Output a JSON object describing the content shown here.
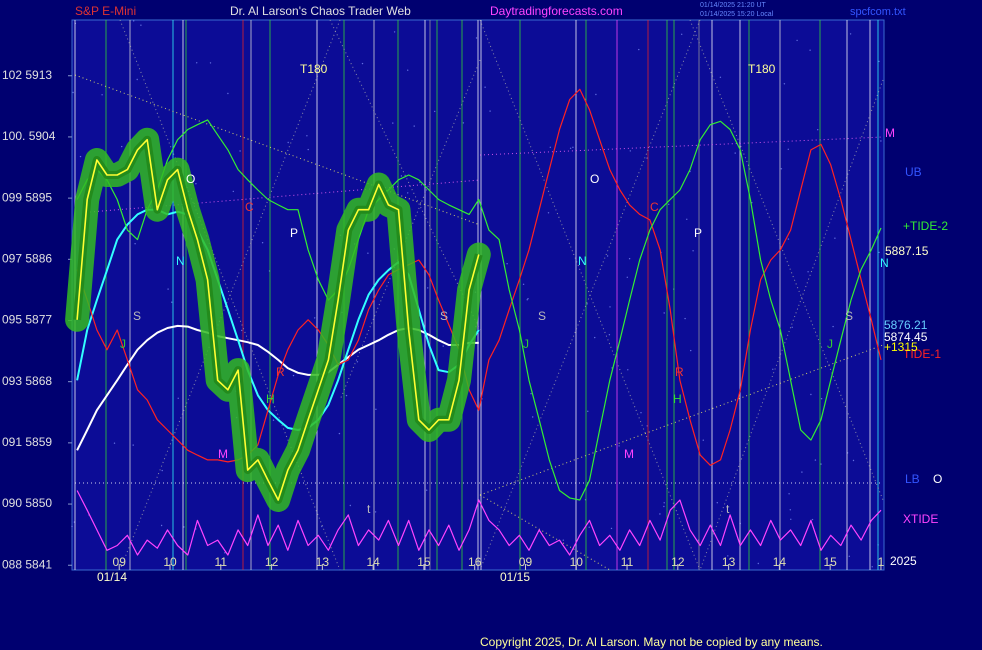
{
  "chart_data": {
    "type": "line",
    "instrument": "S&P E-Mini",
    "title": "Dr. Al Larson's Chaos Trader Web",
    "website": "Daytradingforecasts.com",
    "timestamps": [
      "01/14/2025 21:20 UT",
      "01/14/2025 15:20 Local"
    ],
    "file": "spcfcom.txt",
    "copyright": "Copyright 2025, Dr. Al Larson. May not be copied by any means.",
    "date_labels": [
      "01/14",
      "01/15"
    ],
    "x": [
      8.17,
      8.37,
      8.56,
      8.76,
      8.96,
      9.16,
      9.36,
      9.55,
      9.75,
      9.95,
      10.15,
      10.35,
      10.54,
      10.74,
      10.94,
      11.14,
      11.34,
      11.53,
      11.73,
      11.93,
      12.13,
      12.32,
      12.52,
      12.72,
      12.92,
      13.12,
      13.31,
      13.51,
      13.71,
      13.91,
      14.11,
      14.3,
      14.5,
      14.7,
      14.9,
      15.1,
      15.29,
      15.49,
      15.69,
      15.89,
      16.08,
      16.28,
      16.48,
      16.68,
      16.88,
      17.07,
      17.27,
      17.47,
      17.67,
      17.87,
      18.07,
      18.26,
      18.46,
      18.66,
      18.86,
      19.05,
      19.25,
      19.45,
      19.65,
      19.85,
      20.04,
      20.24,
      20.44,
      20.64,
      20.84,
      21.03,
      21.23,
      21.43,
      21.63,
      21.83,
      22.02,
      22.22,
      22.42,
      22.62,
      22.82,
      23.01,
      23.21,
      23.41,
      23.61,
      23.81,
      24.0
    ],
    "series": [
      {
        "color": "#ffffff",
        "values": [
          5857.9,
          5860.9,
          5863.8,
          5866.0,
          5868.2,
          5870.5,
          5872.7,
          5874.1,
          5875.2,
          5875.9,
          5876.2,
          5876.1,
          5875.6,
          5875.2,
          5874.7,
          5874.4,
          5874.1,
          5873.8,
          5873.4,
          5872.4,
          5871.2,
          5870.0,
          5869.3,
          5869.0,
          5869.0,
          5869.4,
          5870.5,
          5871.6,
          5872.7,
          5873.4,
          5874.1,
          5874.9,
          5875.6,
          5875.9,
          5875.6,
          5874.9,
          5874.1,
          5873.4,
          5873.4,
          5873.7,
          5873.7,
          null,
          null,
          null,
          null,
          null,
          null,
          null,
          null,
          null,
          null,
          null,
          null,
          null,
          null,
          null,
          null,
          null,
          null,
          null,
          null,
          null,
          null,
          null,
          null,
          null,
          null,
          null,
          null,
          null,
          null,
          null,
          null,
          null,
          null,
          null,
          null,
          null,
          null,
          null,
          null
        ]
      },
      {
        "color": "#33ffff",
        "values": [
          5868.2,
          5875.6,
          5880.0,
          5884.4,
          5888.9,
          5891.1,
          5892.6,
          5893.3,
          5893.3,
          5892.6,
          5893.0,
          5892.6,
          5890.3,
          5887.4,
          5883.0,
          5878.6,
          5874.1,
          5869.7,
          5866.0,
          5863.8,
          5862.4,
          5861.2,
          5860.9,
          5861.2,
          5862.4,
          5864.6,
          5868.2,
          5872.7,
          5877.1,
          5880.8,
          5883.0,
          5884.4,
          5885.6,
          5883.7,
          5878.6,
          5873.4,
          5869.7,
          5869.4,
          5870.5,
          5873.4,
          5875.6,
          null,
          null,
          null,
          null,
          null,
          null,
          null,
          null,
          null,
          null,
          null,
          null,
          null,
          null,
          null,
          null,
          null,
          null,
          null,
          null,
          null,
          null,
          null,
          null,
          null,
          null,
          null,
          null,
          null,
          null,
          null,
          null,
          null,
          null,
          null,
          null,
          null,
          null,
          null,
          null
        ]
      },
      {
        "name": "TIDE-1",
        "color": "#ff2222",
        "values": [
          5884.5,
          5880.0,
          5875.6,
          5872.7,
          5875.6,
          5871.2,
          5866.8,
          5865.3,
          5862.4,
          5860.9,
          5859.4,
          5857.9,
          5857.2,
          5856.5,
          5856.5,
          5856.2,
          5856.5,
          5857.2,
          5858.7,
          5863.8,
          5869.0,
          5872.7,
          5875.6,
          5877.1,
          5875.6,
          5873.4,
          5870.5,
          5871.2,
          5874.1,
          5878.6,
          5881.5,
          5883.7,
          5884.5,
          5885.2,
          5885.9,
          5883.7,
          5880.0,
          5876.4,
          5872.7,
          5866.8,
          5863.8,
          5871.2,
          5874.1,
          5878.6,
          5883.0,
          5887.4,
          5893.3,
          5899.2,
          5905.1,
          5909.5,
          5911.0,
          5908.0,
          5903.6,
          5899.2,
          5896.2,
          5894.0,
          5892.6,
          5891.8,
          5887.4,
          5878.6,
          5868.2,
          5862.4,
          5857.2,
          5855.7,
          5856.5,
          5860.9,
          5866.8,
          5875.6,
          5883.0,
          5885.9,
          5887.4,
          5890.3,
          5896.2,
          5902.1,
          5902.9,
          5899.9,
          5894.8,
          5888.9,
          5883.0,
          5877.1,
          5871.2
        ]
      },
      {
        "name": "+TIDE-2",
        "color": "#33ee33",
        "values": [
          5894.8,
          5897.7,
          5899.2,
          5897.7,
          5894.8,
          5890.3,
          5888.9,
          5893.3,
          5896.2,
          5900.6,
          5903.6,
          5905.1,
          5905.8,
          5906.5,
          5904.3,
          5902.1,
          5899.2,
          5897.7,
          5896.2,
          5894.8,
          5894.0,
          5893.3,
          5893.3,
          5887.4,
          5883.0,
          5880.0,
          5881.5,
          5884.5,
          5888.9,
          5893.3,
          5894.8,
          5896.2,
          5897.7,
          5898.4,
          5897.7,
          5896.2,
          5894.8,
          5894.0,
          5893.3,
          5892.6,
          5894.8,
          5890.3,
          5888.9,
          5881.5,
          5875.6,
          5868.2,
          5862.4,
          5856.5,
          5852.0,
          5850.9,
          5850.6,
          5853.5,
          5860.9,
          5868.2,
          5874.1,
          5880.0,
          5885.9,
          5890.3,
          5893.3,
          5894.8,
          5896.2,
          5899.2,
          5903.6,
          5905.8,
          5906.3,
          5905.1,
          5902.1,
          5894.8,
          5885.9,
          5880.0,
          5875.6,
          5868.2,
          5860.9,
          5859.4,
          5862.4,
          5868.2,
          5874.1,
          5880.0,
          5884.5,
          5887.4,
          5890.6
        ]
      },
      {
        "name": "XTIDE",
        "color": "#ff44ff",
        "values": [
          5852.0,
          5849.1,
          5846.2,
          5843.2,
          5843.9,
          5845.4,
          5842.5,
          5844.7,
          5843.5,
          5846.2,
          5843.9,
          5842.5,
          5847.6,
          5843.9,
          5844.7,
          5842.5,
          5846.2,
          5843.9,
          5848.4,
          5843.9,
          5846.9,
          5843.2,
          5847.6,
          5843.9,
          5845.4,
          5843.2,
          5846.2,
          5848.4,
          5843.9,
          5846.2,
          5844.7,
          5847.6,
          5843.9,
          5847.6,
          5843.2,
          5846.2,
          5843.9,
          5846.9,
          5843.2,
          5846.2,
          5850.6,
          5847.6,
          5846.2,
          5843.9,
          5845.4,
          5843.2,
          5846.2,
          5843.9,
          5844.7,
          5842.5,
          5845.4,
          5847.6,
          5843.9,
          5845.4,
          5843.2,
          5846.2,
          5843.9,
          5847.6,
          5844.7,
          5849.1,
          5850.6,
          5846.2,
          5843.9,
          5846.9,
          5843.9,
          5848.4,
          5843.9,
          5846.2,
          5843.9,
          5847.6,
          5844.7,
          5846.2,
          5843.9,
          5847.6,
          5843.2,
          5845.4,
          5843.9,
          5846.9,
          5844.7,
          5847.6,
          5849.1
        ]
      },
      {
        "color": "#ffff33",
        "halo": "#33bb22",
        "values": [
          5877.1,
          5894.8,
          5900.6,
          5898.4,
          5898.4,
          5899.2,
          5902.1,
          5903.6,
          5893.3,
          5897.7,
          5899.2,
          5893.3,
          5888.9,
          5883.0,
          5868.2,
          5866.8,
          5869.7,
          5855.0,
          5856.5,
          5853.5,
          5850.6,
          5855.0,
          5857.9,
          5862.4,
          5866.8,
          5871.2,
          5880.0,
          5890.3,
          5893.3,
          5893.3,
          5897.0,
          5894.0,
          5893.3,
          5875.6,
          5862.4,
          5860.9,
          5862.4,
          5862.4,
          5868.2,
          5881.5,
          5886.7,
          null,
          null,
          null,
          null,
          null,
          null,
          null,
          null,
          null,
          null,
          null,
          null,
          null,
          null,
          null,
          null,
          null,
          null,
          null,
          null,
          null,
          null,
          null,
          null,
          null,
          null,
          null,
          null,
          null,
          null,
          null,
          null,
          null,
          null,
          null,
          null,
          null,
          null,
          null,
          null
        ]
      }
    ],
    "xlim": [
      8.07,
      24.06
    ],
    "xticks": [
      {
        "value": 9,
        "label": "09"
      },
      10,
      11,
      12,
      13,
      14,
      15,
      16,
      {
        "value": 17,
        "label": "09"
      },
      {
        "value": 18,
        "label": "10"
      },
      {
        "value": 19,
        "label": "11"
      },
      {
        "value": 20,
        "label": "12"
      },
      {
        "value": 21,
        "label": "13"
      },
      {
        "value": 22,
        "label": "14"
      },
      {
        "value": 23,
        "label": "15"
      },
      {
        "value": 24,
        "label": "1"
      }
    ],
    "ylim": [
      5840.3,
      5921.2
    ],
    "yticks": [
      {
        "value": 5913,
        "label": "102 5913"
      },
      {
        "value": 5904,
        "label": "100. 5904"
      },
      {
        "value": 5895,
        "label": "099 5895"
      },
      {
        "value": 5886,
        "label": "097 5886"
      },
      {
        "value": 5877,
        "label": "095 5877"
      },
      {
        "value": 5868,
        "label": "093 5868"
      },
      {
        "value": 5859,
        "label": "091 5859"
      },
      {
        "value": 5850,
        "label": "090 5850"
      },
      {
        "value": 5841,
        "label": "088 5841"
      }
    ],
    "grid": false,
    "right_labels": [
      "M",
      "UB",
      5887.15,
      "N",
      5876.21,
      5874.45,
      "+1315",
      "LB",
      "O",
      "2025"
    ],
    "annotations": [
      "T180",
      "T180",
      "O",
      "C",
      "P",
      "N",
      "S",
      "J",
      "R",
      "H",
      "M",
      "t",
      "S",
      "J",
      "S",
      "O",
      "N",
      "C",
      "P",
      "R",
      "H",
      "M",
      "t",
      "J",
      "S"
    ]
  }
}
